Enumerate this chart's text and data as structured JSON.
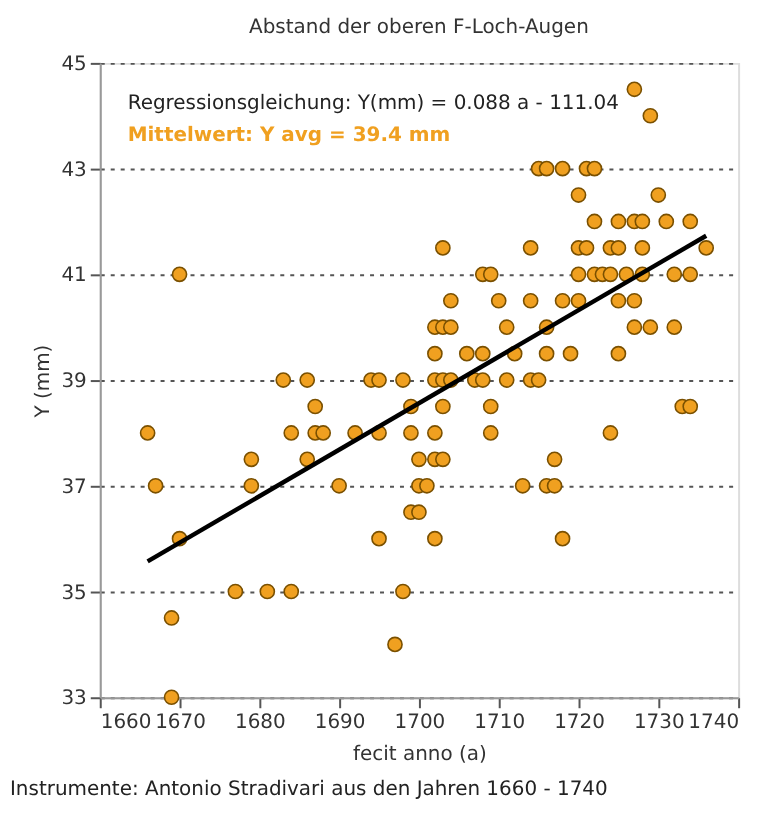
{
  "chart_data": {
    "type": "scatter",
    "title": "Abstand der oberen F-Loch-Augen",
    "xlabel": "fecit anno (a)",
    "ylabel": "Y (mm)",
    "annotations": [
      "Regressionsgleichung: Y(mm) = 0.088 a - 111.04",
      "Mittelwert: Y avg = 39.4 mm",
      "Instrumente: Antonio Stradivari aus den Jahren 1660 - 1740"
    ],
    "xlim": [
      1660,
      1740
    ],
    "xticks": [
      1660,
      1670,
      1680,
      1690,
      1700,
      1710,
      1720,
      1730,
      1740
    ],
    "ylim": [
      33,
      45
    ],
    "yticks": [
      33,
      35,
      37,
      39,
      41,
      43,
      45
    ],
    "grid": "y",
    "marker": "circle",
    "series": [
      {
        "color": "#f0a020",
        "x": [
          1670,
          1666,
          1667,
          1669,
          1669,
          1670,
          1677,
          1681,
          1684,
          1698,
          1679,
          1686,
          1679,
          1690,
          1684,
          1687,
          1688,
          1692,
          1695,
          1699,
          1687,
          1699,
          1683,
          1686,
          1694,
          1695,
          1698,
          1699,
          1700,
          1695,
          1702,
          1697,
          1700,
          1702,
          1703,
          1700,
          1701,
          1717,
          1713,
          1716,
          1717,
          1718,
          1727,
          1729,
          1715,
          1716,
          1718,
          1721,
          1722,
          1720,
          1730,
          1722,
          1725,
          1727,
          1728,
          1731,
          1734,
          1703,
          1714,
          1720,
          1721,
          1724,
          1725,
          1728,
          1736,
          1708,
          1709,
          1720,
          1722,
          1723,
          1724,
          1726,
          1728,
          1732,
          1734,
          1704,
          1710,
          1714,
          1718,
          1720,
          1725,
          1727,
          1702,
          1703,
          1704,
          1711,
          1716,
          1727,
          1729,
          1732,
          1702,
          1706,
          1708,
          1712,
          1716,
          1719,
          1725,
          1702,
          1703,
          1704,
          1707,
          1708,
          1711,
          1714,
          1715,
          1703,
          1709,
          1733,
          1734,
          1702,
          1709,
          1724
        ],
        "values": [
          41,
          38,
          37,
          34.5,
          33,
          36,
          35,
          35,
          35,
          35,
          37.5,
          37.5,
          37,
          37,
          38,
          38,
          38,
          38,
          38,
          38,
          38.5,
          38.5,
          39,
          39,
          39,
          39,
          39,
          36.5,
          36.5,
          36,
          36,
          34,
          37.5,
          37.5,
          37.5,
          37,
          37,
          37.5,
          37,
          37,
          37,
          36,
          44.5,
          44,
          43,
          43,
          43,
          43,
          43,
          42.5,
          42.5,
          42,
          42,
          42,
          42,
          42,
          42,
          41.5,
          41.5,
          41.5,
          41.5,
          41.5,
          41.5,
          41.5,
          41.5,
          41,
          41,
          41,
          41,
          41,
          41,
          41,
          41,
          41,
          41,
          40.5,
          40.5,
          40.5,
          40.5,
          40.5,
          40.5,
          40.5,
          40,
          40,
          40,
          40,
          40,
          40,
          40,
          40,
          39.5,
          39.5,
          39.5,
          39.5,
          39.5,
          39.5,
          39.5,
          39,
          39,
          39,
          39,
          39,
          39,
          39,
          39,
          38.5,
          38.5,
          38.5,
          38.5,
          38,
          38,
          38
        ]
      },
      {
        "type": "line",
        "marker": "none",
        "line_style": "solid",
        "color": "#000000",
        "x": [
          1666,
          1736
        ],
        "values": [
          35.57,
          41.73
        ]
      }
    ]
  }
}
